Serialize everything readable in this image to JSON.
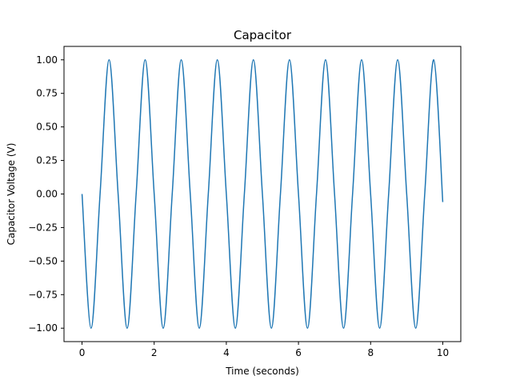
{
  "chart_data": {
    "type": "line",
    "title": "Capacitor",
    "xlabel": "Time (seconds)",
    "ylabel": "Capacitor Voltage (V)",
    "xlim": [
      -0.5,
      10.5
    ],
    "ylim": [
      -1.1,
      1.1
    ],
    "xticks": [
      0,
      2,
      4,
      6,
      8,
      10
    ],
    "xtick_labels": [
      "0",
      "2",
      "4",
      "6",
      "8",
      "10"
    ],
    "yticks": [
      1.0,
      0.75,
      0.5,
      0.25,
      0.0,
      -0.25,
      -0.5,
      -0.75,
      -1.0
    ],
    "ytick_labels": [
      "1.00",
      "0.75",
      "0.50",
      "0.25",
      "0.00",
      "−0.25",
      "−0.50",
      "−0.75",
      "−1.00"
    ],
    "grid": false,
    "series": [
      {
        "color": "#1f77b4",
        "x": [
          0,
          0.25,
          0.5,
          0.75,
          1.0,
          1.25,
          1.5,
          1.75,
          2.0,
          2.25,
          2.5,
          2.75,
          3.0,
          3.25,
          3.5,
          3.75,
          4.0,
          4.25,
          4.5,
          4.75,
          5.0,
          5.25,
          5.5,
          5.75,
          6.0,
          6.25,
          6.5,
          6.75,
          7.0,
          7.25,
          7.5,
          7.75,
          8.0,
          8.25,
          8.5,
          8.75,
          9.0,
          9.25,
          9.5,
          9.75,
          10.0
        ],
        "y": [
          0,
          -1,
          0,
          1,
          0,
          -1,
          0,
          1,
          0,
          -1,
          0,
          1,
          0,
          -1,
          0,
          1,
          0,
          -1,
          0,
          1,
          0,
          -1,
          0,
          1,
          0,
          -1,
          0,
          1,
          0,
          -1,
          0,
          1,
          0,
          -1,
          0,
          1,
          0,
          -1,
          0,
          1,
          -0.06
        ]
      }
    ]
  }
}
